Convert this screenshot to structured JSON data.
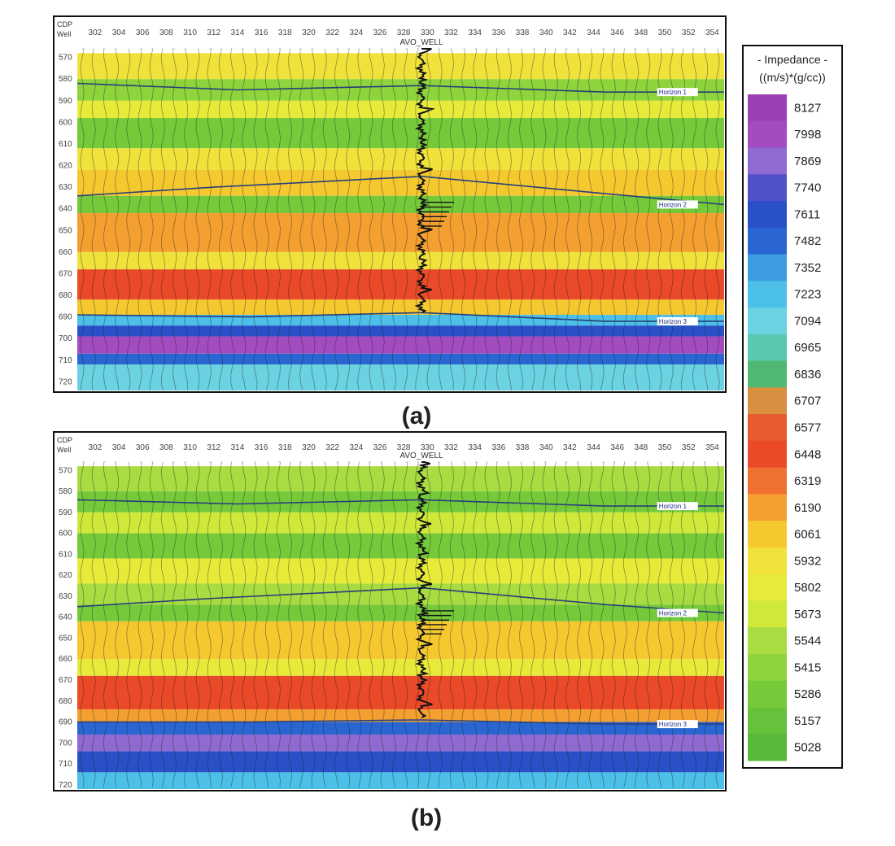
{
  "chart_data": [
    {
      "type": "heatmap",
      "caption": "(a)",
      "header_labels": [
        "CDP",
        "Well"
      ],
      "cdp_ticks": [
        302,
        304,
        306,
        308,
        310,
        312,
        314,
        316,
        318,
        320,
        322,
        324,
        326,
        328,
        330,
        332,
        334,
        336,
        338,
        340,
        342,
        344,
        346,
        348,
        350,
        352,
        354
      ],
      "time_ticks": [
        570,
        580,
        590,
        600,
        610,
        620,
        630,
        640,
        650,
        660,
        670,
        680,
        690,
        700,
        710,
        720
      ],
      "well_name": "AVO_WELL",
      "well_cdp": 329.5,
      "horizons": [
        {
          "name": "Horizon 1",
          "cdp": [
            300.5,
            314,
            329.5,
            345,
            355
          ],
          "time": [
            582,
            585,
            583,
            586,
            586
          ]
        },
        {
          "name": "Horizon 2",
          "cdp": [
            300.5,
            312,
            329.5,
            345,
            355
          ],
          "time": [
            634,
            630,
            625,
            633,
            638
          ]
        },
        {
          "name": "Horizon 3",
          "cdp": [
            300.5,
            315,
            329.5,
            345,
            355
          ],
          "time": [
            689,
            690,
            688,
            692,
            692
          ]
        }
      ],
      "impedance_layers": [
        {
          "time": [
            568,
            580
          ],
          "value": 5950
        },
        {
          "time": [
            580,
            590
          ],
          "value": 5450
        },
        {
          "time": [
            590,
            598
          ],
          "value": 5850
        },
        {
          "time": [
            598,
            612
          ],
          "value": 5250
        },
        {
          "time": [
            612,
            622
          ],
          "value": 5950
        },
        {
          "time": [
            622,
            634
          ],
          "value": 6100
        },
        {
          "time": [
            634,
            642
          ],
          "value": 5300
        },
        {
          "time": [
            642,
            660
          ],
          "value": 6150
        },
        {
          "time": [
            660,
            668
          ],
          "value": 5950
        },
        {
          "time": [
            668,
            682
          ],
          "value": 6500
        },
        {
          "time": [
            682,
            689
          ],
          "value": 6000
        },
        {
          "time": [
            689,
            694
          ],
          "value": 7250
        },
        {
          "time": [
            694,
            699
          ],
          "value": 7600
        },
        {
          "time": [
            699,
            707
          ],
          "value": 8000
        },
        {
          "time": [
            707,
            712
          ],
          "value": 7500
        },
        {
          "time": [
            712,
            724
          ],
          "value": 7150
        }
      ]
    },
    {
      "type": "heatmap",
      "caption": "(b)",
      "header_labels": [
        "CDP",
        "Well"
      ],
      "cdp_ticks": [
        302,
        304,
        306,
        308,
        310,
        312,
        314,
        316,
        318,
        320,
        322,
        324,
        326,
        328,
        330,
        332,
        334,
        336,
        338,
        340,
        342,
        344,
        346,
        348,
        350,
        352,
        354
      ],
      "time_ticks": [
        570,
        580,
        590,
        600,
        610,
        620,
        630,
        640,
        650,
        660,
        670,
        680,
        690,
        700,
        710,
        720
      ],
      "well_name": "AVO_WELL",
      "well_cdp": 329.5,
      "horizons": [
        {
          "name": "Horizon 1",
          "cdp": [
            300.5,
            314,
            329.5,
            345,
            355
          ],
          "time": [
            584,
            586,
            584,
            587,
            587
          ]
        },
        {
          "name": "Horizon 2",
          "cdp": [
            300.5,
            312,
            329.5,
            345,
            355
          ],
          "time": [
            635,
            631,
            626,
            634,
            638
          ]
        },
        {
          "name": "Horizon 3",
          "cdp": [
            300.5,
            315,
            329.5,
            345,
            355
          ],
          "time": [
            690,
            690,
            689,
            691,
            691
          ]
        }
      ],
      "impedance_layers": [
        {
          "time": [
            568,
            580
          ],
          "value": 5600
        },
        {
          "time": [
            580,
            590
          ],
          "value": 5350
        },
        {
          "time": [
            590,
            600
          ],
          "value": 5650
        },
        {
          "time": [
            600,
            612
          ],
          "value": 5250
        },
        {
          "time": [
            612,
            624
          ],
          "value": 5750
        },
        {
          "time": [
            624,
            634
          ],
          "value": 5500
        },
        {
          "time": [
            634,
            642
          ],
          "value": 5300
        },
        {
          "time": [
            642,
            660
          ],
          "value": 6050
        },
        {
          "time": [
            660,
            668
          ],
          "value": 5850
        },
        {
          "time": [
            668,
            684
          ],
          "value": 6450
        },
        {
          "time": [
            684,
            690
          ],
          "value": 6200
        },
        {
          "time": [
            690,
            696
          ],
          "value": 7500
        },
        {
          "time": [
            696,
            704
          ],
          "value": 7900
        },
        {
          "time": [
            704,
            714
          ],
          "value": 7550
        },
        {
          "time": [
            714,
            722
          ],
          "value": 7200
        }
      ]
    }
  ],
  "colorbar": {
    "title_line1": "- Impedance -",
    "title_line2": "((m/s)*(g/cc))",
    "labels": [
      "8127",
      "7998",
      "7869",
      "7740",
      "7611",
      "7482",
      "7352",
      "7223",
      "7094",
      "6965",
      "6836",
      "6707",
      "6577",
      "6448",
      "6319",
      "6190",
      "6061",
      "5932",
      "5802",
      "5673",
      "5544",
      "5415",
      "5286",
      "5157",
      "5028"
    ],
    "colors": [
      "#9b3fb4",
      "#a24cc0",
      "#8f6ad0",
      "#5050c8",
      "#2a50c8",
      "#2a66d2",
      "#3c9ee0",
      "#4cc0e8",
      "#6ad2e0",
      "#58c8b0",
      "#50b870",
      "#d89040",
      "#e85a30",
      "#ea4a28",
      "#f07030",
      "#f4a030",
      "#f5c830",
      "#f0e23a",
      "#e8ea3a",
      "#d0e83a",
      "#a8dc40",
      "#8ed43c",
      "#76ca3a",
      "#66c23a",
      "#58b83a"
    ]
  },
  "colors": {
    "panel_border": "#111111",
    "tick_label": "#444444",
    "horizon_line": "#27407a",
    "well_log": "#111111"
  }
}
